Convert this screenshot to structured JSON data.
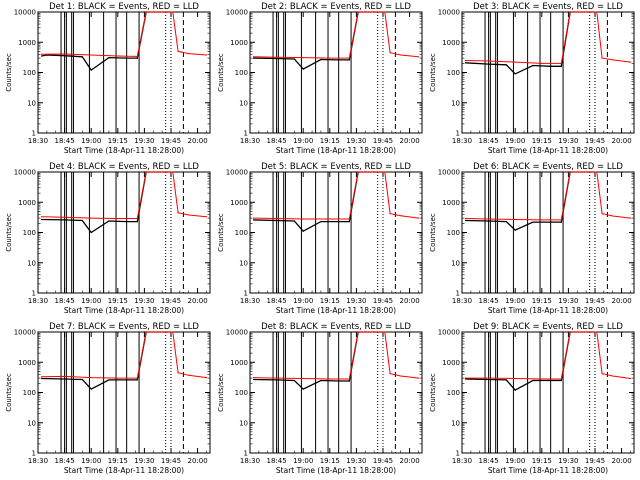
{
  "figure": {
    "xlabel": "Start Time (18-Apr-11 18:28:00)",
    "ylabel": "Counts/sec"
  },
  "chart_data": [
    {
      "type": "line",
      "title": "Det 1: BLACK = Events, RED = LLD",
      "xlabel": "Start Time (18-Apr-11 18:28:00)",
      "ylabel": "Counts/sec",
      "y_scale": "log",
      "ylim": [
        1,
        10000
      ],
      "xlim": [
        "18:30",
        "20:07"
      ],
      "x_ticks": [
        "18:30",
        "18:45",
        "19:00",
        "19:15",
        "19:30",
        "19:45",
        "20:00"
      ],
      "y_ticks": [
        "1",
        "10",
        "100",
        "1000",
        "10000"
      ],
      "series": [
        {
          "name": "BLACK = Events",
          "color": "#000000",
          "x": [
            "18:32",
            "18:35",
            "18:45",
            "18:55",
            "19:00",
            "19:10",
            "19:20",
            "19:26",
            "19:31",
            "19:36",
            "19:45"
          ],
          "values": [
            350,
            380,
            360,
            330,
            120,
            310,
            300,
            300,
            10000,
            10000,
            10000
          ]
        },
        {
          "name": "RED = LLD",
          "color": "#ff0000",
          "x": [
            "18:32",
            "18:45",
            "19:00",
            "19:15",
            "19:26",
            "19:31",
            "19:40",
            "19:46",
            "19:49",
            "19:55",
            "20:05"
          ],
          "values": [
            400,
            410,
            380,
            350,
            340,
            10000,
            10000,
            10000,
            500,
            420,
            380
          ]
        }
      ]
    },
    {
      "type": "line",
      "title": "Det 2: BLACK = Events, RED = LLD",
      "xlabel": "Start Time (18-Apr-11 18:28:00)",
      "ylabel": "Counts/sec",
      "y_scale": "log",
      "ylim": [
        1,
        10000
      ],
      "xlim": [
        "18:30",
        "20:07"
      ],
      "x_ticks": [
        "18:30",
        "18:45",
        "19:00",
        "19:15",
        "19:30",
        "19:45",
        "20:00"
      ],
      "y_ticks": [
        "1",
        "10",
        "100",
        "1000",
        "10000"
      ],
      "series": [
        {
          "name": "BLACK = Events",
          "color": "#000000",
          "x": [
            "18:32",
            "18:45",
            "18:55",
            "19:00",
            "19:10",
            "19:20",
            "19:26",
            "19:31",
            "19:45"
          ],
          "values": [
            300,
            290,
            280,
            130,
            270,
            260,
            260,
            10000,
            10000
          ]
        },
        {
          "name": "RED = LLD",
          "color": "#ff0000",
          "x": [
            "18:32",
            "18:45",
            "19:00",
            "19:15",
            "19:26",
            "19:31",
            "19:40",
            "19:46",
            "19:49",
            "19:55",
            "20:05"
          ],
          "values": [
            330,
            320,
            310,
            300,
            300,
            10000,
            10000,
            10000,
            450,
            380,
            330
          ]
        }
      ]
    },
    {
      "type": "line",
      "title": "Det 3: BLACK = Events, RED = LLD",
      "xlabel": "Start Time (18-Apr-11 18:28:00)",
      "ylabel": "Counts/sec",
      "y_scale": "log",
      "ylim": [
        1,
        10000
      ],
      "xlim": [
        "18:30",
        "20:07"
      ],
      "x_ticks": [
        "18:30",
        "18:45",
        "19:00",
        "19:15",
        "19:30",
        "19:45",
        "20:00"
      ],
      "y_ticks": [
        "1",
        "10",
        "100",
        "1000",
        "10000"
      ],
      "series": [
        {
          "name": "BLACK = Events",
          "color": "#000000",
          "x": [
            "18:32",
            "18:45",
            "18:55",
            "19:00",
            "19:10",
            "19:20",
            "19:26",
            "19:31",
            "19:45"
          ],
          "values": [
            210,
            190,
            180,
            90,
            170,
            160,
            160,
            10000,
            10000
          ]
        },
        {
          "name": "RED = LLD",
          "color": "#ff0000",
          "x": [
            "18:32",
            "18:45",
            "19:00",
            "19:15",
            "19:26",
            "19:31",
            "19:40",
            "19:46",
            "19:49",
            "19:55",
            "20:05"
          ],
          "values": [
            250,
            240,
            220,
            200,
            200,
            10000,
            10000,
            10000,
            300,
            260,
            220
          ]
        }
      ]
    },
    {
      "type": "line",
      "title": "Det 4: BLACK = Events, RED = LLD",
      "xlabel": "Start Time (18-Apr-11 18:28:00)",
      "ylabel": "Counts/sec",
      "y_scale": "log",
      "ylim": [
        1,
        10000
      ],
      "xlim": [
        "18:30",
        "20:07"
      ],
      "x_ticks": [
        "18:30",
        "18:45",
        "19:00",
        "19:15",
        "19:30",
        "19:45",
        "20:00"
      ],
      "y_ticks": [
        "1",
        "10",
        "100",
        "1000",
        "10000"
      ],
      "series": [
        {
          "name": "BLACK = Events",
          "color": "#000000",
          "x": [
            "18:32",
            "18:45",
            "18:55",
            "19:00",
            "19:10",
            "19:20",
            "19:26",
            "19:31",
            "19:45"
          ],
          "values": [
            270,
            260,
            250,
            100,
            240,
            230,
            230,
            10000,
            10000
          ]
        },
        {
          "name": "RED = LLD",
          "color": "#ff0000",
          "x": [
            "18:32",
            "18:45",
            "19:00",
            "19:15",
            "19:26",
            "19:31",
            "19:40",
            "19:46",
            "19:49",
            "19:55",
            "20:05"
          ],
          "values": [
            330,
            320,
            300,
            290,
            290,
            10000,
            10000,
            10000,
            450,
            380,
            330
          ]
        }
      ]
    },
    {
      "type": "line",
      "title": "Det 5: BLACK = Events, RED = LLD",
      "xlabel": "Start Time (18-Apr-11 18:28:00)",
      "ylabel": "Counts/sec",
      "y_scale": "log",
      "ylim": [
        1,
        10000
      ],
      "xlim": [
        "18:30",
        "20:07"
      ],
      "x_ticks": [
        "18:30",
        "18:45",
        "19:00",
        "19:15",
        "19:30",
        "19:45",
        "20:00"
      ],
      "y_ticks": [
        "1",
        "10",
        "100",
        "1000",
        "10000"
      ],
      "series": [
        {
          "name": "BLACK = Events",
          "color": "#000000",
          "x": [
            "18:32",
            "18:45",
            "18:55",
            "19:00",
            "19:10",
            "19:20",
            "19:26",
            "19:31",
            "19:45"
          ],
          "values": [
            260,
            250,
            240,
            110,
            230,
            230,
            230,
            10000,
            10000
          ]
        },
        {
          "name": "RED = LLD",
          "color": "#ff0000",
          "x": [
            "18:32",
            "18:45",
            "19:00",
            "19:15",
            "19:26",
            "19:31",
            "19:40",
            "19:46",
            "19:49",
            "19:55",
            "20:05"
          ],
          "values": [
            300,
            290,
            280,
            280,
            280,
            10000,
            10000,
            10000,
            420,
            360,
            300
          ]
        }
      ]
    },
    {
      "type": "line",
      "title": "Det 6: BLACK = Events, RED = LLD",
      "xlabel": "Start Time (18-Apr-11 18:28:00)",
      "ylabel": "Counts/sec",
      "y_scale": "log",
      "ylim": [
        1,
        10000
      ],
      "xlim": [
        "18:30",
        "20:07"
      ],
      "x_ticks": [
        "18:30",
        "18:45",
        "19:00",
        "19:15",
        "19:30",
        "19:45",
        "20:00"
      ],
      "y_ticks": [
        "1",
        "10",
        "100",
        "1000",
        "10000"
      ],
      "series": [
        {
          "name": "BLACK = Events",
          "color": "#000000",
          "x": [
            "18:32",
            "18:45",
            "18:55",
            "19:00",
            "19:10",
            "19:20",
            "19:26",
            "19:31",
            "19:45"
          ],
          "values": [
            250,
            240,
            230,
            120,
            220,
            220,
            220,
            10000,
            10000
          ]
        },
        {
          "name": "RED = LLD",
          "color": "#ff0000",
          "x": [
            "18:32",
            "18:45",
            "19:00",
            "19:15",
            "19:26",
            "19:31",
            "19:40",
            "19:46",
            "19:49",
            "19:55",
            "20:05"
          ],
          "values": [
            290,
            280,
            270,
            260,
            260,
            10000,
            10000,
            10000,
            420,
            350,
            300
          ]
        }
      ]
    },
    {
      "type": "line",
      "title": "Det 7: BLACK = Events, RED = LLD",
      "xlabel": "Start Time (18-Apr-11 18:28:00)",
      "ylabel": "Counts/sec",
      "y_scale": "log",
      "ylim": [
        1,
        10000
      ],
      "xlim": [
        "18:30",
        "20:07"
      ],
      "x_ticks": [
        "18:30",
        "18:45",
        "19:00",
        "19:15",
        "19:30",
        "19:45",
        "20:00"
      ],
      "y_ticks": [
        "1",
        "10",
        "100",
        "1000",
        "10000"
      ],
      "series": [
        {
          "name": "BLACK = Events",
          "color": "#000000",
          "x": [
            "18:32",
            "18:45",
            "18:55",
            "19:00",
            "19:10",
            "19:20",
            "19:26",
            "19:31",
            "19:45"
          ],
          "values": [
            290,
            280,
            270,
            130,
            260,
            260,
            260,
            10000,
            10000
          ]
        },
        {
          "name": "RED = LLD",
          "color": "#ff0000",
          "x": [
            "18:32",
            "18:45",
            "19:00",
            "19:15",
            "19:26",
            "19:31",
            "19:40",
            "19:46",
            "19:49",
            "19:55",
            "20:05"
          ],
          "values": [
            330,
            340,
            310,
            300,
            300,
            10000,
            10000,
            10000,
            450,
            370,
            310
          ]
        }
      ]
    },
    {
      "type": "line",
      "title": "Det 8: BLACK = Events, RED = LLD",
      "xlabel": "Start Time (18-Apr-11 18:28:00)",
      "ylabel": "Counts/sec",
      "y_scale": "log",
      "ylim": [
        1,
        10000
      ],
      "xlim": [
        "18:30",
        "20:07"
      ],
      "x_ticks": [
        "18:30",
        "18:45",
        "19:00",
        "19:15",
        "19:30",
        "19:45",
        "20:00"
      ],
      "y_ticks": [
        "1",
        "10",
        "100",
        "1000",
        "10000"
      ],
      "series": [
        {
          "name": "BLACK = Events",
          "color": "#000000",
          "x": [
            "18:32",
            "18:45",
            "18:55",
            "19:00",
            "19:10",
            "19:20",
            "19:26",
            "19:31",
            "19:45"
          ],
          "values": [
            270,
            260,
            250,
            130,
            250,
            240,
            240,
            10000,
            10000
          ]
        },
        {
          "name": "RED = LLD",
          "color": "#ff0000",
          "x": [
            "18:32",
            "18:45",
            "19:00",
            "19:15",
            "19:26",
            "19:31",
            "19:40",
            "19:46",
            "19:49",
            "19:55",
            "20:05"
          ],
          "values": [
            310,
            300,
            290,
            280,
            280,
            10000,
            10000,
            10000,
            420,
            350,
            300
          ]
        }
      ]
    },
    {
      "type": "line",
      "title": "Det 9: BLACK = Events, RED = LLD",
      "xlabel": "Start Time (18-Apr-11 18:28:00)",
      "ylabel": "Counts/sec",
      "y_scale": "log",
      "ylim": [
        1,
        10000
      ],
      "xlim": [
        "18:30",
        "20:07"
      ],
      "x_ticks": [
        "18:30",
        "18:45",
        "19:00",
        "19:15",
        "19:30",
        "19:45",
        "20:00"
      ],
      "y_ticks": [
        "1",
        "10",
        "100",
        "1000",
        "10000"
      ],
      "series": [
        {
          "name": "BLACK = Events",
          "color": "#000000",
          "x": [
            "18:32",
            "18:45",
            "18:55",
            "19:00",
            "19:10",
            "19:20",
            "19:26",
            "19:31",
            "19:45"
          ],
          "values": [
            280,
            270,
            260,
            120,
            250,
            250,
            250,
            10000,
            10000
          ]
        },
        {
          "name": "RED = LLD",
          "color": "#ff0000",
          "x": [
            "18:32",
            "18:45",
            "19:00",
            "19:15",
            "19:26",
            "19:31",
            "19:40",
            "19:46",
            "19:49",
            "19:55",
            "20:05"
          ],
          "values": [
            300,
            300,
            290,
            280,
            280,
            10000,
            10000,
            10000,
            420,
            350,
            290
          ]
        }
      ]
    }
  ]
}
